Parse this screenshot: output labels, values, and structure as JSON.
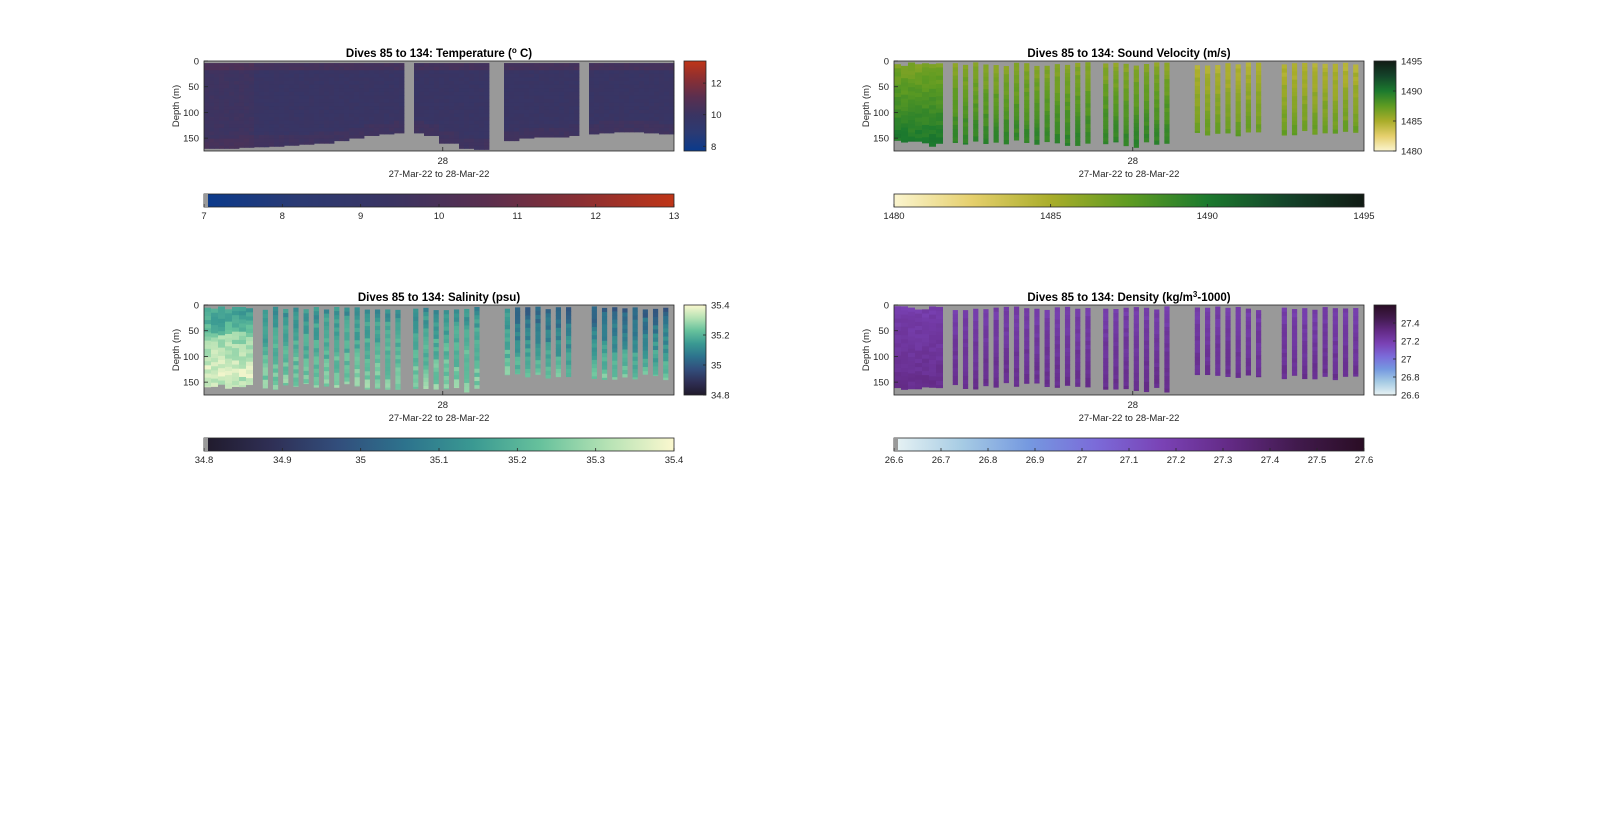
{
  "figure": {
    "panels": [
      {
        "id": "temperature",
        "title_prefix": "Dives 85 to 134: Temperature (",
        "title_sup": "o",
        "title_suffix": " C)",
        "ylabel": "Depth (m)",
        "xtick": "28",
        "xlabel": "27-Mar-22 to 28-Mar-22",
        "colormap": [
          "#0a3a8c",
          "#2b3a73",
          "#3a3462",
          "#5a2f4f",
          "#8a2f33",
          "#bf3517"
        ],
        "colorbar_ticks": [
          "12",
          "10",
          "8"
        ],
        "hbar_ticks": [
          "7",
          "8",
          "9",
          "10",
          "11",
          "12",
          "13"
        ]
      },
      {
        "id": "sound-velocity",
        "title_prefix": "Dives 85 to 134: Sound Velocity (m/s)",
        "title_sup": "",
        "title_suffix": "",
        "ylabel": "Depth (m)",
        "xtick": "28",
        "xlabel": "27-Mar-22 to 28-Mar-22",
        "colormap": [
          "#fbf5cf",
          "#e5cf6c",
          "#a9ad2a",
          "#5e9b22",
          "#1c7a2e",
          "#14442a",
          "#111b14"
        ],
        "colorbar_ticks": [
          "1495",
          "1490",
          "1485",
          "1480"
        ],
        "hbar_ticks": [
          "1480",
          "1485",
          "1490",
          "1495"
        ]
      },
      {
        "id": "salinity",
        "title_prefix": "Dives 85 to 134: Salinity (psu)",
        "title_sup": "",
        "title_suffix": "",
        "ylabel": "Depth (m)",
        "xtick": "28",
        "xlabel": "27-Mar-22 to 28-Mar-22",
        "colormap": [
          "#201a2b",
          "#2f2f55",
          "#324e7c",
          "#2d738d",
          "#3a9992",
          "#66c19c",
          "#b5e2b4",
          "#fbf8cf"
        ],
        "colorbar_ticks": [
          "35.4",
          "35.2",
          "35",
          "34.8"
        ],
        "hbar_ticks": [
          "34.8",
          "34.9",
          "35",
          "35.1",
          "35.2",
          "35.3",
          "35.4"
        ]
      },
      {
        "id": "density",
        "title_prefix": "Dives 85 to 134: Density (kg/m",
        "title_sup": "3",
        "title_suffix": "-1000)",
        "ylabel": "Depth (m)",
        "xtick": "28",
        "xlabel": "27-Mar-22 to 28-Mar-22",
        "colormap": [
          "#e8f3f4",
          "#a7cce4",
          "#7599e0",
          "#7b6bd9",
          "#7a42b5",
          "#632a85",
          "#411a4d",
          "#2a0d24"
        ],
        "colorbar_ticks": [
          "27.4",
          "27.2",
          "27",
          "26.8",
          "26.6"
        ],
        "hbar_ticks": [
          "26.6",
          "26.7",
          "26.8",
          "26.9",
          "27",
          "27.1",
          "27.2",
          "27.3",
          "27.4",
          "27.5",
          "27.6"
        ]
      }
    ]
  },
  "chart_data": [
    {
      "type": "heatmap",
      "title": "Dives 85 to 134: Temperature (o C)",
      "ylabel": "Depth (m)",
      "xlabel": "27-Mar-22 to 28-Mar-22",
      "x_tick_labels": [
        "28"
      ],
      "y_ticks": [
        0,
        50,
        100,
        150
      ],
      "ylim": [
        0,
        175
      ],
      "y_reversed": true,
      "colorbar_range": [
        7.7,
        13.4
      ],
      "colorbar_ticks": [
        8,
        10,
        12
      ],
      "hbar_range": [
        7,
        13
      ],
      "hbar_ticks": [
        7,
        8,
        9,
        10,
        11,
        12,
        13
      ],
      "nodata_color": "#999999",
      "typical_values": {
        "surface": 9.8,
        "interior": 9.3,
        "deep": 9.6
      },
      "gaps": [
        [
          0.418,
          0.438
        ],
        [
          0.602,
          0.638
        ],
        [
          0.797,
          0.817
        ]
      ],
      "bottom_depth_profile": [
        170,
        170,
        168,
        167,
        166,
        164,
        162,
        160,
        155,
        150,
        145,
        142,
        140,
        140,
        145,
        160,
        170,
        172,
        173,
        155,
        150,
        148,
        148,
        145,
        142,
        140,
        138,
        138,
        140,
        142
      ]
    },
    {
      "type": "heatmap",
      "title": "Dives 85 to 134: Sound Velocity (m/s)",
      "ylabel": "Depth (m)",
      "xlabel": "27-Mar-22 to 28-Mar-22",
      "x_tick_labels": [
        "28"
      ],
      "y_ticks": [
        0,
        50,
        100,
        150
      ],
      "ylim": [
        0,
        175
      ],
      "y_reversed": true,
      "colorbar_range": [
        1480,
        1495
      ],
      "colorbar_ticks": [
        1480,
        1485,
        1490,
        1495
      ],
      "hbar_range": [
        1480,
        1495
      ],
      "hbar_ticks": [
        1480,
        1485,
        1490,
        1495
      ],
      "nodata_color": "#999999",
      "typical_values": {
        "surface_west": 1486.5,
        "deep_west": 1490.5,
        "surface_east": 1484.5,
        "deep_east": 1488
      },
      "casts": 50
    },
    {
      "type": "heatmap",
      "title": "Dives 85 to 134: Salinity (psu)",
      "ylabel": "Depth (m)",
      "xlabel": "27-Mar-22 to 28-Mar-22",
      "x_tick_labels": [
        "28"
      ],
      "y_ticks": [
        0,
        50,
        100,
        150
      ],
      "ylim": [
        0,
        175
      ],
      "y_reversed": true,
      "colorbar_range": [
        34.8,
        35.4
      ],
      "colorbar_ticks": [
        34.8,
        35,
        35.2,
        35.4
      ],
      "hbar_range": [
        34.8,
        35.4
      ],
      "hbar_ticks": [
        34.8,
        34.9,
        35,
        35.1,
        35.2,
        35.3,
        35.4
      ],
      "nodata_color": "#999999",
      "typical_values": {
        "surface_west": 35.15,
        "deep_west": 35.35,
        "surface_east": 35.0,
        "deep_east": 35.3
      },
      "casts": 50
    },
    {
      "type": "heatmap",
      "title": "Dives 85 to 134: Density (kg/m3-1000)",
      "ylabel": "Depth (m)",
      "xlabel": "27-Mar-22 to 28-Mar-22",
      "x_tick_labels": [
        "28"
      ],
      "y_ticks": [
        0,
        50,
        100,
        150
      ],
      "ylim": [
        0,
        175
      ],
      "y_reversed": true,
      "colorbar_range": [
        26.6,
        27.6
      ],
      "colorbar_ticks": [
        26.6,
        26.8,
        27,
        27.2,
        27.4
      ],
      "hbar_range": [
        26.6,
        27.6
      ],
      "hbar_ticks": [
        26.6,
        26.7,
        26.8,
        26.9,
        27,
        27.1,
        27.2,
        27.3,
        27.4,
        27.5,
        27.6
      ],
      "nodata_color": "#999999",
      "typical_values": {
        "surface": 27.2,
        "deep": 27.3
      },
      "casts": 50
    }
  ]
}
